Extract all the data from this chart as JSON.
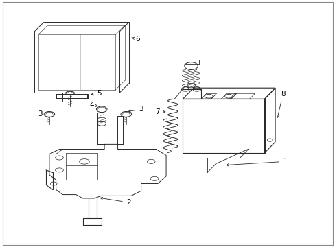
{
  "figsize": [
    4.89,
    3.6
  ],
  "dpi": 100,
  "bg": "#ffffff",
  "lc": "#2a2a2a",
  "tc": "#000000",
  "label_positions": {
    "1": [
      0.845,
      0.365,
      0.8,
      0.31
    ],
    "2": [
      0.395,
      0.195,
      0.395,
      0.165
    ],
    "3a": [
      0.138,
      0.535,
      0.138,
      0.535
    ],
    "3b": [
      0.415,
      0.535,
      0.415,
      0.535
    ],
    "4": [
      0.3,
      0.565,
      0.3,
      0.565
    ],
    "5": [
      0.325,
      0.635,
      0.325,
      0.635
    ],
    "6": [
      0.315,
      0.885,
      0.315,
      0.885
    ],
    "7": [
      0.515,
      0.555,
      0.515,
      0.555
    ],
    "8": [
      0.845,
      0.645,
      0.845,
      0.645
    ]
  }
}
